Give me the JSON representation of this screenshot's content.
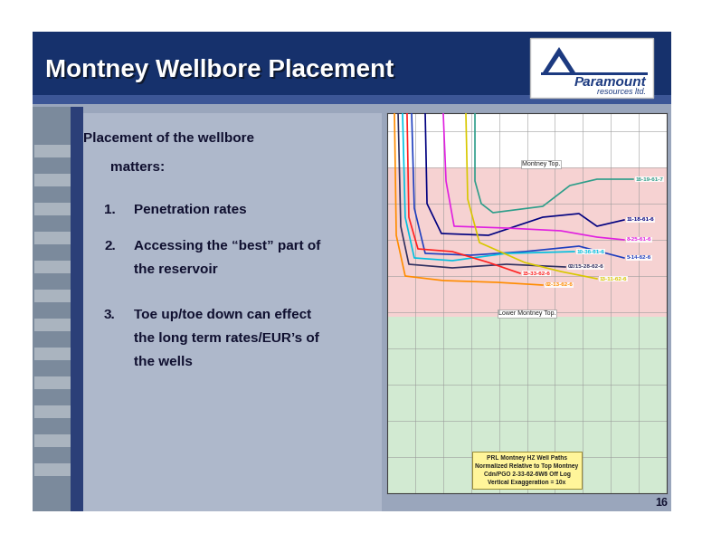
{
  "slide": {
    "title": "Montney Wellbore Placement",
    "logo": {
      "name": "Paramount",
      "subtitle": "resources ltd."
    },
    "intro": [
      "Placement of the wellbore",
      "matters:"
    ],
    "items": [
      {
        "number": "1.",
        "text": "Penetration rates"
      },
      {
        "number": "2.",
        "text": "Accessing the “best” part of the reservoir"
      },
      {
        "number": "3.",
        "text": "Toe up/toe down can effect the long term rates/EUR’s of the wells"
      }
    ],
    "page": 16
  },
  "chart_data": {
    "type": "line",
    "xlim": [
      0,
      2000
    ],
    "ylim": [
      -180,
      30
    ],
    "xticks": [
      0,
      200,
      400,
      600,
      800,
      1000,
      1200,
      1400,
      1600,
      1800,
      2000
    ],
    "yticks": [
      -180,
      -160,
      -140,
      -120,
      -100,
      -80,
      -60,
      -40,
      -20,
      0,
      20
    ],
    "grid": true,
    "tick_labels": false,
    "bands": [
      {
        "from": 0,
        "to": -82.5,
        "color": "#f6d2d2",
        "label": "Montney Top."
      },
      {
        "from": -82.5,
        "to": -180,
        "color": "#d2ead2",
        "label": "Lower Montney Top."
      }
    ],
    "note": [
      "PRL Montney HZ Well Paths",
      "Normalized Relative to Top Montney",
      "Cdn/PGO 2-33-62-6W6 Off Log",
      "Vertical Exaggeration = 10x"
    ],
    "series": [
      {
        "name": "16-19-61-7",
        "color": "#2e9e8a",
        "x": [
          628,
          628,
          673,
          757,
          1113,
          1307,
          1501,
          1760
        ],
        "y": [
          30,
          -7.5,
          -20,
          -25,
          -21.5,
          -10,
          -6.5,
          -6.5
        ]
      },
      {
        "name": "11-18-61-6",
        "color": "#000080",
        "x": [
          272,
          285,
          388,
          725,
          1113,
          1372,
          1501,
          1695
        ],
        "y": [
          30,
          -20,
          -36.5,
          -37.5,
          -27.5,
          -25.5,
          -32.5,
          -29
        ]
      },
      {
        "name": "8-25-61-6",
        "color": "#e020e0",
        "x": [
          401,
          421,
          479,
          854,
          1242,
          1501,
          1695
        ],
        "y": [
          30,
          -7.5,
          -32.5,
          -33.5,
          -35,
          -38.5,
          -40
        ]
      },
      {
        "name": "5-14-62-6",
        "color": "#1f3fbf",
        "x": [
          175,
          194,
          272,
          595,
          983,
          1372,
          1695
        ],
        "y": [
          30,
          -22.5,
          -47.5,
          -48.5,
          -46.5,
          -43.5,
          -50
        ]
      },
      {
        "name": "10-36-61-6",
        "color": "#00c0e0",
        "x": [
          110,
          129,
          194,
          466,
          854,
          1339
        ],
        "y": [
          30,
          -27.5,
          -50,
          -51.5,
          -47.5,
          -46.5
        ]
      },
      {
        "name": "02/15-28-62-6",
        "color": "#303060",
        "x": [
          78,
          97,
          155,
          466,
          854,
          1275
        ],
        "y": [
          30,
          -32.5,
          -53.5,
          -55.5,
          -53.5,
          -55
        ]
      },
      {
        "name": "13-11-62-6",
        "color": "#d8c800",
        "x": [
          563,
          576,
          660,
          983,
          1242,
          1501
        ],
        "y": [
          30,
          -17.5,
          -41.5,
          -52.5,
          -57.5,
          -61.5
        ]
      },
      {
        "name": "02-13-62-6",
        "color": "#ff8c00",
        "x": [
          52,
          65,
          129,
          401,
          789,
          1113
        ],
        "y": [
          30,
          -37.5,
          -60,
          -62.5,
          -63.5,
          -65
        ]
      },
      {
        "name": "15-33-62-6",
        "color": "#ff2020",
        "x": [
          142,
          155,
          220,
          466,
          725,
          951
        ],
        "y": [
          30,
          -27.5,
          -45,
          -46.5,
          -52.5,
          -58.5
        ]
      }
    ]
  }
}
